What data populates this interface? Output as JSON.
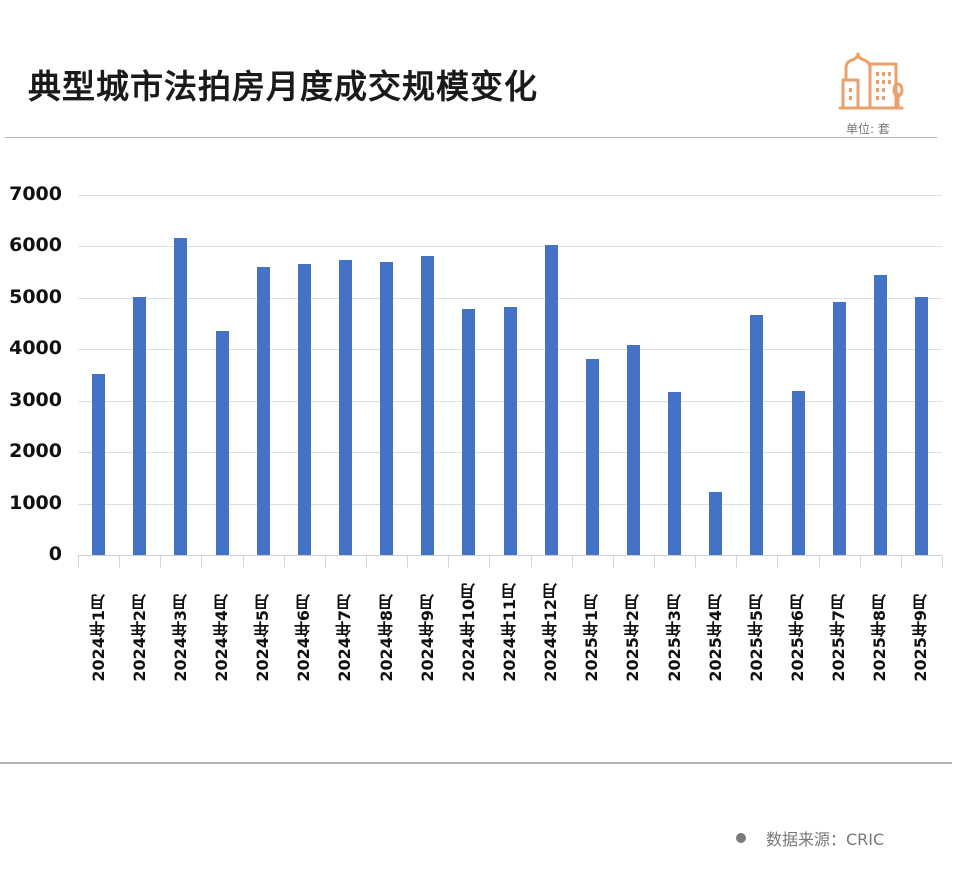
{
  "header": {
    "title": "典型城市法拍房月度成交规模变化",
    "unit_label": "单位: 套",
    "logo_icon": "city-buildings-icon",
    "accent_color": "#e9a06a"
  },
  "footer": {
    "source_label": "数据来源：CRIC"
  },
  "chart_data": {
    "type": "bar",
    "title": "典型城市法拍房月度成交规模变化",
    "xlabel": "",
    "ylabel": "单位: 套",
    "ylim": [
      0,
      7000
    ],
    "yticks": [
      0,
      1000,
      2000,
      3000,
      4000,
      5000,
      6000,
      7000
    ],
    "grid": true,
    "legend": null,
    "bar_color": "#4472c4",
    "categories": [
      "2024年1月",
      "2024年2月",
      "2024年3月",
      "2024年4月",
      "2024年5月",
      "2024年6月",
      "2024年7月",
      "2024年8月",
      "2024年9月",
      "2024年10月",
      "2024年11月",
      "2024年12月",
      "2025年1月",
      "2025年2月",
      "2025年3月",
      "2025年4月",
      "2025年5月",
      "2025年6月",
      "2025年7月",
      "2025年8月",
      "2025年9月"
    ],
    "values": [
      3510,
      5015,
      6170,
      4355,
      5605,
      5655,
      5740,
      5690,
      5810,
      4775,
      4815,
      6025,
      3805,
      4090,
      3170,
      1225,
      4665,
      3190,
      4920,
      5450,
      5015
    ]
  }
}
